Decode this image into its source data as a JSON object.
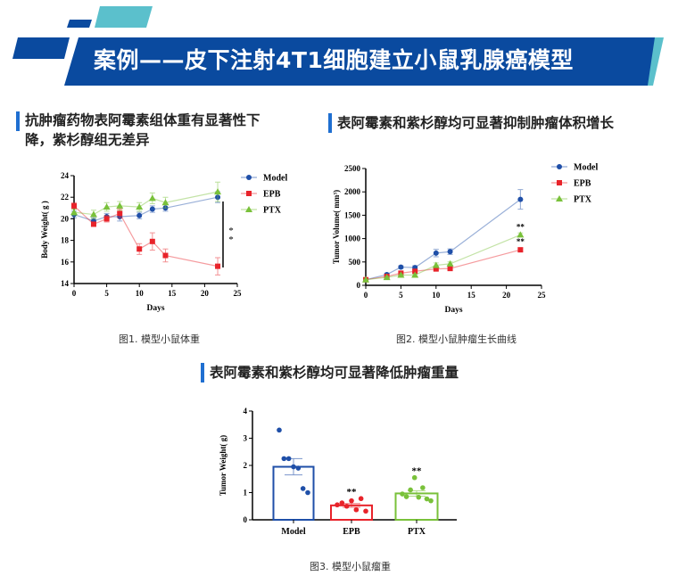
{
  "banner": {
    "title": "案例——皮下注射4T1细胞建立小鼠乳腺癌模型",
    "color": "#0a4a9f",
    "accent": "#5bc0cc"
  },
  "section1": {
    "heading_line1": "抗肿瘤药物表阿霉素组体重有显著性下",
    "heading_line2": "降，紫杉醇组无差异",
    "caption": "图1. 模型小鼠体重"
  },
  "section2": {
    "heading": "表阿霉素和紫杉醇均可显著抑制肿瘤体积增长",
    "caption": "图2. 模型小鼠肿瘤生长曲线"
  },
  "section3": {
    "heading": "表阿霉素和紫杉醇均可显著降低肿瘤重量",
    "caption": "图3. 模型小鼠瘤重"
  },
  "chart_data": [
    {
      "type": "line",
      "xlabel": "Days",
      "ylabel": "Body Weight( g )",
      "xlim": [
        0,
        25
      ],
      "ylim": [
        14,
        24
      ],
      "xticks": [
        0,
        5,
        10,
        15,
        20,
        25
      ],
      "yticks": [
        14,
        16,
        18,
        20,
        22,
        24
      ],
      "legend": "right",
      "annotation": "**",
      "x": [
        0,
        3,
        5,
        7,
        10,
        12,
        14,
        22
      ],
      "series": [
        {
          "name": "Model",
          "color": "#1f4fa8",
          "marker": "circle",
          "values": [
            20.4,
            19.8,
            20.2,
            20.2,
            20.3,
            20.9,
            21.0,
            22.0
          ],
          "err": [
            0.3,
            0.3,
            0.3,
            0.4,
            0.3,
            0.3,
            0.3,
            0.5
          ]
        },
        {
          "name": "EPB",
          "color": "#e8232a",
          "marker": "square",
          "values": [
            21.2,
            19.5,
            20.0,
            20.5,
            17.2,
            17.9,
            16.6,
            15.6
          ],
          "err": [
            0.3,
            0.2,
            0.3,
            0.4,
            0.5,
            0.8,
            0.6,
            0.8
          ]
        },
        {
          "name": "PTX",
          "color": "#79c13a",
          "marker": "triangle",
          "values": [
            20.6,
            20.4,
            21.1,
            21.2,
            21.1,
            21.9,
            21.5,
            22.5
          ],
          "err": [
            0.3,
            0.4,
            0.4,
            0.4,
            0.4,
            0.5,
            0.5,
            0.9
          ]
        }
      ]
    },
    {
      "type": "line",
      "xlabel": "Days",
      "ylabel": "Tumor Volume( mm³)",
      "xlim": [
        0,
        25
      ],
      "ylim": [
        0,
        2500
      ],
      "xticks": [
        0,
        5,
        10,
        15,
        20,
        25
      ],
      "yticks": [
        0,
        500,
        1000,
        1500,
        2000,
        2500
      ],
      "legend": "top-right",
      "annotation": "**",
      "x": [
        0,
        3,
        5,
        7,
        10,
        12,
        22
      ],
      "series": [
        {
          "name": "Model",
          "color": "#1f4fa8",
          "marker": "circle",
          "values": [
            120,
            230,
            390,
            380,
            690,
            720,
            1840
          ],
          "err": [
            20,
            30,
            30,
            40,
            80,
            60,
            210
          ]
        },
        {
          "name": "EPB",
          "color": "#e8232a",
          "marker": "square",
          "values": [
            120,
            190,
            260,
            300,
            350,
            360,
            760
          ],
          "err": [
            10,
            20,
            30,
            30,
            30,
            30,
            40
          ]
        },
        {
          "name": "PTX",
          "color": "#79c13a",
          "marker": "triangle",
          "values": [
            120,
            170,
            220,
            220,
            430,
            460,
            1080
          ],
          "err": [
            10,
            20,
            20,
            20,
            50,
            40,
            40
          ]
        }
      ]
    },
    {
      "type": "bar",
      "ylabel": "Tumor Weight( g)",
      "ylim": [
        0,
        4
      ],
      "yticks": [
        0,
        1,
        2,
        3,
        4
      ],
      "categories": [
        "Model",
        "EPB",
        "PTX"
      ],
      "series": [
        {
          "color": "#1f4fa8",
          "mean": 1.95,
          "sem": 0.3,
          "points": [
            3.3,
            2.25,
            2.25,
            1.95,
            1.9,
            1.15,
            1.0
          ],
          "annotation": ""
        },
        {
          "color": "#e8232a",
          "mean": 0.53,
          "sem": 0.07,
          "points": [
            0.55,
            0.62,
            0.5,
            0.7,
            0.37,
            0.78,
            0.32
          ],
          "annotation": "**"
        },
        {
          "color": "#79c13a",
          "mean": 0.97,
          "sem": 0.1,
          "points": [
            0.95,
            0.85,
            1.1,
            1.55,
            0.83,
            1.18,
            0.77,
            0.7
          ],
          "annotation": "**"
        }
      ]
    }
  ]
}
